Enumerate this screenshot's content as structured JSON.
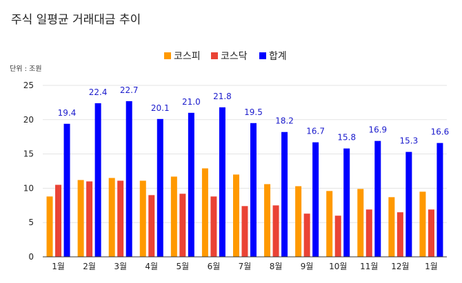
{
  "chart_data": {
    "type": "bar",
    "title": "주식 일평균 거래대금 추이",
    "unit_label": "단위 : 조원",
    "xlabel": "",
    "ylabel": "",
    "ylim": [
      0,
      25
    ],
    "yticks": [
      0,
      5,
      10,
      15,
      20,
      25
    ],
    "grid": true,
    "legend_position": "top-center",
    "categories": [
      "1월",
      "2월",
      "3월",
      "4월",
      "5월",
      "6월",
      "7월",
      "8월",
      "9월",
      "10월",
      "11월",
      "12월",
      "1월"
    ],
    "series": [
      {
        "name": "코스피",
        "color": "#ff9900",
        "values": [
          8.8,
          11.2,
          11.5,
          11.1,
          11.7,
          12.9,
          12.0,
          10.6,
          10.3,
          9.6,
          9.9,
          8.7,
          9.5
        ]
      },
      {
        "name": "코스닥",
        "color": "#ea4335",
        "values": [
          10.5,
          11.0,
          11.1,
          9.0,
          9.2,
          8.8,
          7.4,
          7.5,
          6.3,
          6.0,
          6.9,
          6.5,
          6.9
        ]
      },
      {
        "name": "합계",
        "color": "#0000ff",
        "values": [
          19.4,
          22.4,
          22.7,
          20.1,
          21.0,
          21.8,
          19.5,
          18.2,
          16.7,
          15.8,
          16.9,
          15.3,
          16.6
        ]
      }
    ],
    "data_label_series": "합계",
    "data_labels": [
      "19.4",
      "22.4",
      "22.7",
      "20.1",
      "21.0",
      "21.8",
      "19.5",
      "18.2",
      "16.7",
      "15.8",
      "16.9",
      "15.3",
      "16.6"
    ]
  }
}
